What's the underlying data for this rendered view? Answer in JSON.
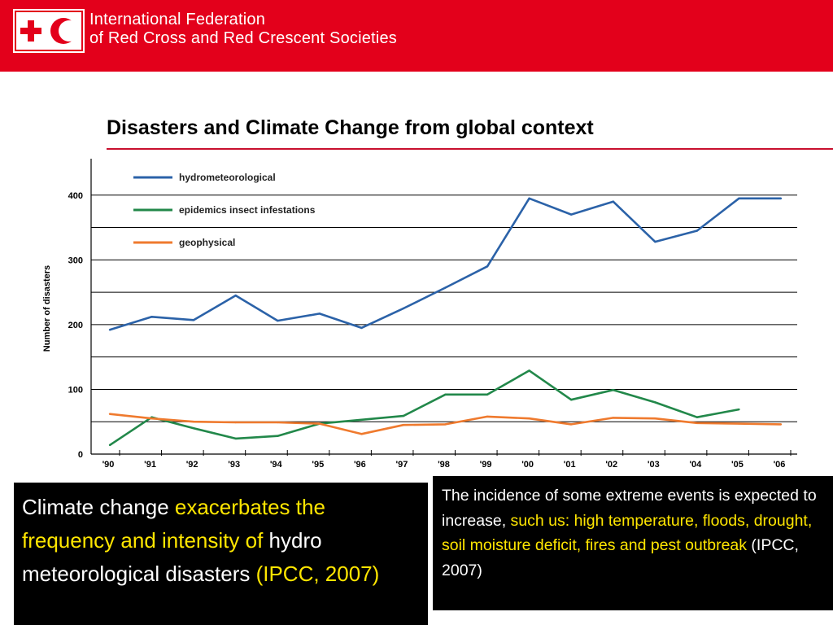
{
  "header": {
    "org_line1": "International Federation",
    "org_line2": "of Red Cross and Red Crescent Societies"
  },
  "slide": {
    "title": "Disasters and Climate Change from global context"
  },
  "colors": {
    "brand_red": "#e3001b",
    "highlight_yellow": "#ffe600",
    "hydro": "#2b62a8",
    "epidemics": "#22884a",
    "geophysical": "#ef7a2e"
  },
  "chart_data": {
    "type": "line",
    "title": "",
    "xlabel": "",
    "ylabel": "Number of disasters",
    "x": [
      "'90",
      "'91",
      "'92",
      "'93",
      "'94",
      "'95",
      "'96",
      "'97",
      "'98",
      "'99",
      "'00",
      "'01",
      "'02",
      "'03",
      "'04",
      "'05",
      "'06"
    ],
    "ylim": [
      0,
      450
    ],
    "yticks": [
      0,
      100,
      200,
      300,
      400
    ],
    "grid": true,
    "legend_position": "top-left",
    "series": [
      {
        "name": "hydrometeorological",
        "color": "#2b62a8",
        "values": [
          192,
          212,
          207,
          245,
          206,
          217,
          195,
          225,
          257,
          290,
          395,
          370,
          390,
          328,
          345,
          395,
          395
        ]
      },
      {
        "name": "epidemics insect infestations",
        "color": "#22884a",
        "values": [
          14,
          57,
          40,
          24,
          28,
          47,
          53,
          59,
          92,
          92,
          129,
          84,
          99,
          80,
          57,
          69,
          null
        ]
      },
      {
        "name": "geophysical",
        "color": "#ef7a2e",
        "values": [
          62,
          55,
          50,
          49,
          49,
          47,
          31,
          45,
          46,
          58,
          55,
          46,
          56,
          55,
          48,
          47,
          46
        ]
      }
    ]
  },
  "box_left": {
    "part1": "Climate change ",
    "part2": "exacerbates the frequency and intensity of",
    "part3": " hydro meteorological disasters ",
    "part4": "(IPCC, 2007)"
  },
  "box_right": {
    "part1": "The incidence of some extreme events is expected to increase, ",
    "part2": "such us: high temperature, floods, drought, soil moisture deficit, fires and pest outbreak",
    "part3": " (IPCC, 2007)"
  }
}
